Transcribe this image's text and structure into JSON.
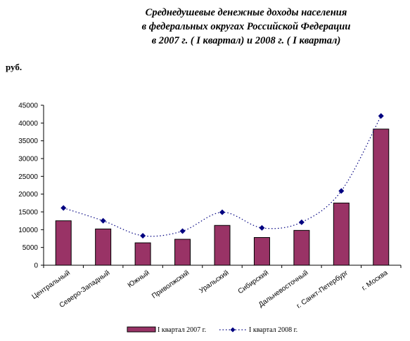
{
  "title_lines": [
    "Среднедушевые денежные доходы населения",
    "в федеральных округах Российской Федерации",
    "в  2007 г. ( I  квартал) и  2008 г. ( I  квартал)"
  ],
  "unit_label": "руб.",
  "colors": {
    "bar": "#993366",
    "line": "#000080",
    "marker": "#000080"
  },
  "chart_data": {
    "type": "bar",
    "title": "Среднедушевые денежные доходы населения в федеральных округах Российской Федерации в  2007 г. ( I  квартал) и  2008 г. ( I  квартал)",
    "ylabel": "руб.",
    "ylim": [
      0,
      45000
    ],
    "yticks": [
      0,
      5000,
      10000,
      15000,
      20000,
      25000,
      30000,
      35000,
      40000,
      45000
    ],
    "categories": [
      "Центральный",
      "Северо-Западный",
      "Южный",
      "Приволжский",
      "Уральский",
      "Сибирский",
      "Дальневосточный",
      "г. Санкт-Петербург",
      "г. Москва"
    ],
    "series": [
      {
        "name": "I квартал 2007 г.",
        "kind": "bar",
        "values": [
          12500,
          10200,
          6300,
          7300,
          11200,
          7800,
          9800,
          17500,
          38300
        ]
      },
      {
        "name": "I квартал 2008 г.",
        "kind": "line",
        "values": [
          16100,
          12500,
          8300,
          9600,
          14900,
          10500,
          12100,
          20900,
          42000
        ]
      }
    ],
    "grid": false,
    "legend_position": "bottom"
  }
}
